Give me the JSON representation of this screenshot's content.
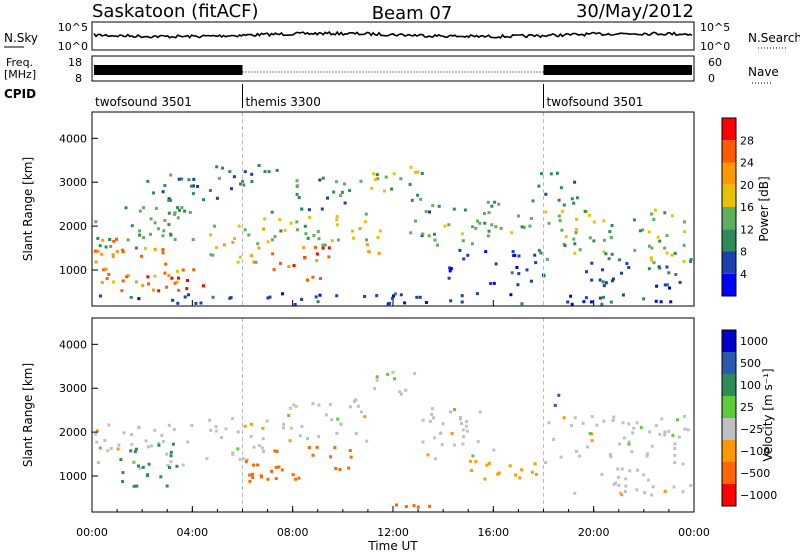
{
  "header": {
    "station": "Saskatoon (fitACF)",
    "beam": "Beam 07",
    "date": "30/May/2012"
  },
  "noise_panel": {
    "left_label": "N.Sky",
    "left_ticks": [
      "10^5",
      "10^0"
    ],
    "right_label": "N.Search",
    "right_ticks": [
      "10^5",
      "10^0"
    ]
  },
  "freq_panel": {
    "left_label_1": "Freq.",
    "left_label_2": "[MHz]",
    "left_ticks": [
      "18",
      "8"
    ],
    "right_label": "Nave",
    "right_ticks": [
      "60",
      "0"
    ]
  },
  "cpid": {
    "label": "CPID",
    "segments": [
      {
        "name": "twofsound 3501",
        "start_hour": 0
      },
      {
        "name": "themis 3300",
        "start_hour": 6
      },
      {
        "name": "twofsound 3501",
        "start_hour": 18
      }
    ]
  },
  "colors": {
    "power": [
      "#0000ff",
      "#1a3fb0",
      "#2e8b57",
      "#5fae5f",
      "#e6c200",
      "#ff9900",
      "#ff5a00",
      "#ff0000"
    ],
    "velocity": [
      "#0000cc",
      "#2a5ab0",
      "#2e8b57",
      "#5ccc3a",
      "#c0c0c0",
      "#c0c0c0",
      "#ff9900",
      "#ff6600",
      "#ff0000"
    ]
  },
  "chart_data": [
    {
      "type": "heatmap",
      "name": "power",
      "ylabel": "Slant Range [km]",
      "y_ticks": [
        1000,
        2000,
        3000,
        4000
      ],
      "ylim": [
        180,
        4600
      ],
      "xlim": [
        0,
        24
      ],
      "colorbar_label": "Power [dB]",
      "colorbar_ticks": [
        4,
        8,
        12,
        16,
        20,
        24,
        28
      ],
      "colorbar_range": [
        0,
        32
      ],
      "regions": [
        {
          "t0": 0.0,
          "t1": 3.5,
          "r0": 700,
          "r1": 1800,
          "value": 22
        },
        {
          "t0": 0.0,
          "t1": 4.0,
          "r0": 1500,
          "r1": 2600,
          "value": 12
        },
        {
          "t0": 1.0,
          "t1": 4.5,
          "r0": 500,
          "r1": 1100,
          "value": 26
        },
        {
          "t0": 2.0,
          "t1": 5.5,
          "r0": 2600,
          "r1": 3400,
          "value": 9
        },
        {
          "t0": 4.5,
          "t1": 7.0,
          "r0": 1200,
          "r1": 2200,
          "value": 18
        },
        {
          "t0": 5.5,
          "t1": 7.5,
          "r0": 2800,
          "r1": 3500,
          "value": 8
        },
        {
          "t0": 7.0,
          "t1": 9.5,
          "r0": 800,
          "r1": 1600,
          "value": 27
        },
        {
          "t0": 7.0,
          "t1": 11.0,
          "r0": 1600,
          "r1": 2400,
          "value": 15
        },
        {
          "t0": 8.0,
          "t1": 11.0,
          "r0": 2400,
          "r1": 3200,
          "value": 10
        },
        {
          "t0": 10.0,
          "t1": 11.5,
          "r0": 1400,
          "r1": 2000,
          "value": 20
        },
        {
          "t0": 11.0,
          "t1": 13.5,
          "r0": 2800,
          "r1": 3500,
          "value": 14
        },
        {
          "t0": 12.5,
          "t1": 14.0,
          "r0": 1600,
          "r1": 2800,
          "value": 11
        },
        {
          "t0": 14.0,
          "t1": 18.0,
          "r0": 700,
          "r1": 1500,
          "value": 6
        },
        {
          "t0": 14.0,
          "t1": 17.5,
          "r0": 1600,
          "r1": 2600,
          "value": 13
        },
        {
          "t0": 17.5,
          "t1": 19.5,
          "r0": 2500,
          "r1": 3300,
          "value": 9
        },
        {
          "t0": 18.0,
          "t1": 24.0,
          "r0": 1200,
          "r1": 2400,
          "value": 14
        },
        {
          "t0": 19.5,
          "t1": 24.0,
          "r0": 600,
          "r1": 1300,
          "value": 7
        },
        {
          "t0": 0.0,
          "t1": 24.0,
          "r0": 200,
          "r1": 500,
          "value": 5
        }
      ]
    },
    {
      "type": "heatmap",
      "name": "velocity",
      "ylabel": "Slant Range [km]",
      "y_ticks": [
        1000,
        2000,
        3000,
        4000
      ],
      "ylim": [
        180,
        4600
      ],
      "xlim": [
        0,
        24
      ],
      "colorbar_label": "Velocity [m s⁻¹]",
      "colorbar_ticks": [
        "1000",
        "500",
        "100",
        "25",
        "−25",
        "−100",
        "−500",
        "−1000"
      ],
      "regions": [
        {
          "t0": 0.0,
          "t1": 4.0,
          "r0": 1200,
          "r1": 2200,
          "value": 0
        },
        {
          "t0": 1.0,
          "t1": 3.5,
          "r0": 800,
          "r1": 1800,
          "value": 150
        },
        {
          "t0": 4.0,
          "t1": 7.0,
          "r0": 1400,
          "r1": 2400,
          "value": 0
        },
        {
          "t0": 6.0,
          "t1": 10.5,
          "r0": 900,
          "r1": 1700,
          "value": -200
        },
        {
          "t0": 7.5,
          "t1": 11.0,
          "r0": 1800,
          "r1": 2800,
          "value": 0
        },
        {
          "t0": 11.0,
          "t1": 13.0,
          "r0": 2800,
          "r1": 3400,
          "value": 0
        },
        {
          "t0": 12.0,
          "t1": 14.0,
          "r0": 300,
          "r1": 600,
          "value": -150
        },
        {
          "t0": 13.0,
          "t1": 16.0,
          "r0": 1400,
          "r1": 2600,
          "value": 0
        },
        {
          "t0": 15.0,
          "t1": 18.0,
          "r0": 900,
          "r1": 1500,
          "value": -60
        },
        {
          "t0": 18.0,
          "t1": 24.0,
          "r0": 1300,
          "r1": 2400,
          "value": 0
        },
        {
          "t0": 19.0,
          "t1": 24.0,
          "r0": 600,
          "r1": 1200,
          "value": 0
        },
        {
          "t0": 18.3,
          "t1": 18.6,
          "r0": 2600,
          "r1": 3200,
          "value": 700
        }
      ]
    }
  ],
  "x_axis": {
    "label": "Time UT",
    "ticks": [
      "00:00",
      "04:00",
      "08:00",
      "12:00",
      "16:00",
      "20:00",
      "00:00"
    ]
  }
}
